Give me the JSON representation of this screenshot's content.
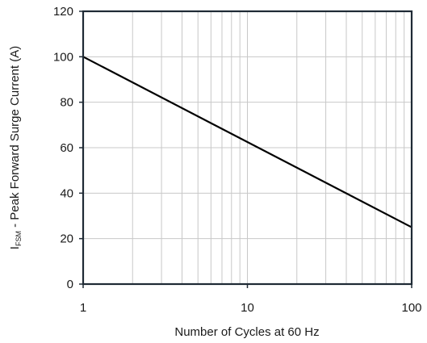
{
  "chart_data": {
    "type": "line",
    "xscale": "log",
    "xlim": [
      1,
      100
    ],
    "ylim": [
      0,
      120
    ],
    "grid": true,
    "x_ticks": [
      1,
      10,
      100
    ],
    "x_tick_labels": [
      "1",
      "10",
      "100"
    ],
    "y_ticks": [
      0,
      20,
      40,
      60,
      80,
      100,
      120
    ],
    "y_tick_labels": [
      "0",
      "20",
      "40",
      "60",
      "80",
      "100",
      "120"
    ],
    "xlabel": "Number of Cycles at 60 Hz",
    "ylabel": {
      "prefix": "I",
      "subscript": "FSM",
      "suffix": " - Peak Forward Surge Current (A)"
    },
    "series": [
      {
        "x": [
          1,
          100
        ],
        "y": [
          100,
          25
        ]
      }
    ],
    "colors": {
      "line": "#000000",
      "frame": "#1f2a35",
      "grid": "#c8c8c8"
    }
  }
}
